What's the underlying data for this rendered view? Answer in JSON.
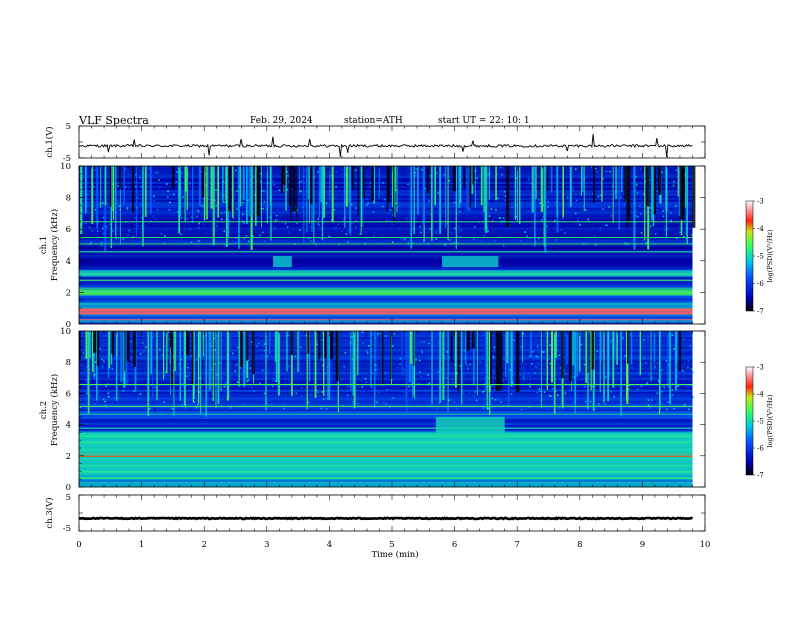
{
  "header": {
    "title": "VLF  Spectra",
    "date": "Feb. 29, 2024",
    "station": "station=ATH",
    "start_ut": "start  UT  =    22: 10: 1"
  },
  "colors": {
    "spectrogram_background": "#00004a",
    "deep_blue": "#0018c8",
    "cyan": "#19c8e6",
    "green": "#3cff5a",
    "red": "#ff2a1e",
    "trace": "#000000"
  },
  "chart_data": [
    {
      "type": "line",
      "panel": "ch1-waveform",
      "ylabel": "ch.1(V)",
      "yticks": [
        "5",
        "-5"
      ],
      "ylim": [
        -5,
        5
      ],
      "x_range_min": [
        0,
        9.8
      ],
      "baseline_v": -1.2,
      "noise_v": 0.4,
      "spike_count": 14
    },
    {
      "type": "heatmap",
      "panel": "ch1-spectrogram",
      "ylabel_top": "ch.1",
      "ylabel": "Frequency  (kHz)",
      "yticks": [
        "0",
        "2",
        "4",
        "6",
        "8",
        "10"
      ],
      "ylim": [
        0,
        10
      ],
      "x_range_min": [
        0,
        9.8
      ],
      "colorbar": {
        "label": "log(PSD)(V²/Hz)",
        "ticks": [
          "-3",
          "-4",
          "-5",
          "-6",
          "-7"
        ],
        "range": [
          -7,
          -3
        ]
      },
      "features": [
        {
          "name": "intense low-frequency band",
          "freq_khz": [
            0.6,
            1.0
          ],
          "log_psd": -3.5
        },
        {
          "name": "steady band",
          "freq_khz": [
            1.8,
            2.2
          ],
          "log_psd": -4.6
        },
        {
          "name": "steady band",
          "freq_khz": [
            3.0,
            3.4
          ],
          "log_psd": -5.0
        },
        {
          "name": "patch near 4 kHz",
          "time_min": [
            3.1,
            3.4
          ],
          "freq_khz": [
            3.6,
            4.3
          ],
          "log_psd": -5.1
        },
        {
          "name": "patch near 4 kHz",
          "time_min": [
            5.8,
            6.7
          ],
          "freq_khz": [
            3.6,
            4.3
          ],
          "log_psd": -5.1
        },
        {
          "name": "broadband sferics above 6 kHz",
          "freq_khz": [
            6,
            10
          ],
          "log_psd": -5.3
        }
      ]
    },
    {
      "type": "heatmap",
      "panel": "ch2-spectrogram",
      "ylabel_top": "ch.2",
      "ylabel": "Frequency  (kHz)",
      "yticks": [
        "0",
        "2",
        "4",
        "6",
        "8",
        "10"
      ],
      "ylim": [
        0,
        10
      ],
      "x_range_min": [
        0,
        9.8
      ],
      "colorbar": {
        "label": "log(PSD)(V²/Hz)",
        "ticks": [
          "-3",
          "-4",
          "-5",
          "-6",
          "-7"
        ],
        "range": [
          -7,
          -3
        ]
      },
      "features": [
        {
          "name": "intense band",
          "freq_khz": [
            1.9,
            2.2
          ],
          "log_psd": -3.8
        },
        {
          "name": "broad green region",
          "freq_khz": [
            0.8,
            3.5
          ],
          "log_psd": -5.0
        },
        {
          "name": "patch near 4 kHz",
          "time_min": [
            5.7,
            6.8
          ],
          "freq_khz": [
            3.5,
            4.5
          ],
          "log_psd": -5.0
        },
        {
          "name": "broadband sferics above 6 kHz",
          "freq_khz": [
            6,
            10
          ],
          "log_psd": -5.2
        }
      ]
    },
    {
      "type": "line",
      "panel": "ch3-waveform",
      "ylabel": "ch.3(V)",
      "yticks": [
        "5",
        "-5"
      ],
      "ylim": [
        -5,
        5
      ],
      "x_range_min": [
        0,
        9.8
      ],
      "baseline_v": -1.5,
      "noise_v": 0.15,
      "xlabel": "Time  (min)",
      "xticks": [
        "0",
        "1",
        "2",
        "3",
        "4",
        "5",
        "6",
        "7",
        "8",
        "9",
        "10"
      ],
      "xlim": [
        0,
        10
      ]
    }
  ]
}
